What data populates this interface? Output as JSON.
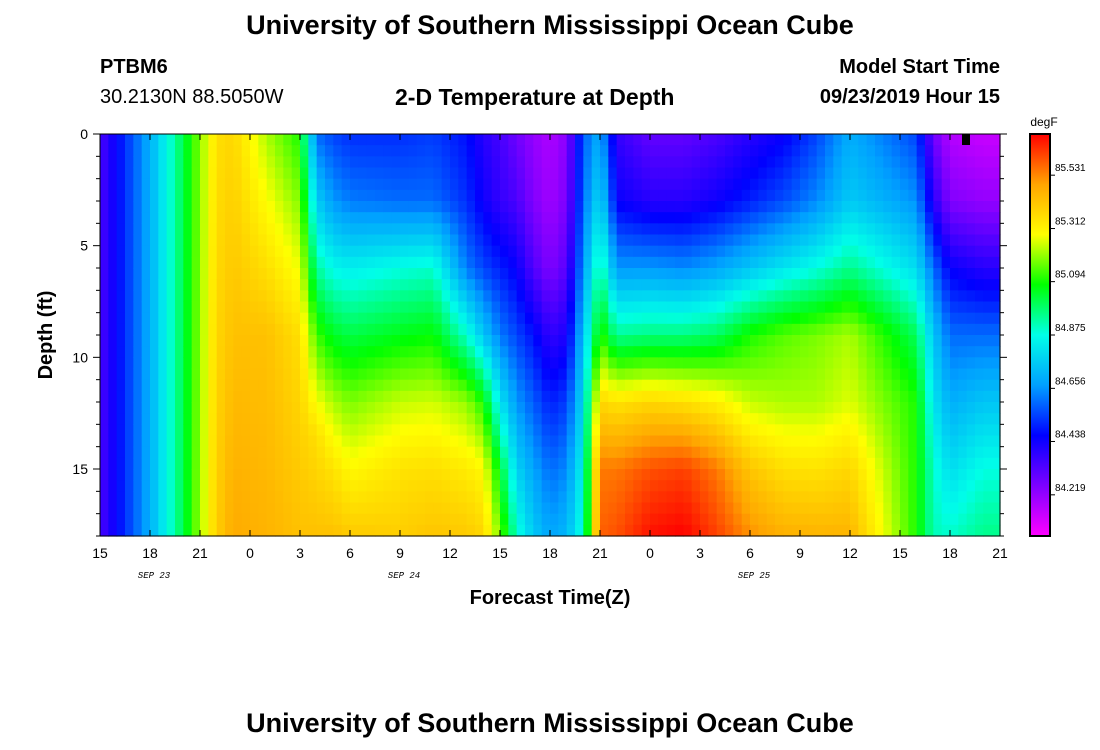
{
  "header": {
    "title": "University of Southern Mississippi Ocean Cube",
    "station_id": "PTBM6",
    "station_coords": "30.2130N 88.5050W",
    "plot_title": "2-D Temperature at Depth",
    "start_label": "Model Start Time",
    "start_value": "09/23/2019 Hour 15"
  },
  "footer": {
    "title": "University of Southern Mississippi Ocean Cube"
  },
  "chart_data": {
    "type": "heatmap",
    "title": "2-D Temperature at Depth",
    "xlabel": "Forecast Time(Z)",
    "ylabel": "Depth (ft)",
    "units": "degF",
    "x_hours_range": [
      0,
      54
    ],
    "x_tick_labels": [
      "15",
      "18",
      "21",
      "0",
      "3",
      "6",
      "9",
      "12",
      "15",
      "18",
      "21",
      "0",
      "3",
      "6",
      "9",
      "12",
      "15",
      "18",
      "21"
    ],
    "date_labels": [
      {
        "label": "SEP 23",
        "at_tick": 1
      },
      {
        "label": "SEP 24",
        "at_tick": 6
      },
      {
        "label": "SEP 25",
        "at_tick": 13
      }
    ],
    "y_range": [
      0,
      18
    ],
    "y_ticks": [
      0,
      5,
      10,
      15
    ],
    "color_range": [
      84.05,
      85.7
    ],
    "colorbar_ticks": [
      85.531,
      85.312,
      85.094,
      84.875,
      84.656,
      84.438,
      84.219
    ],
    "colormap": [
      "#ff00ff",
      "#7d00ff",
      "#0000ff",
      "#00a0ff",
      "#00ffe8",
      "#00ff00",
      "#ffff00",
      "#ffa500",
      "#ff0000"
    ],
    "columns": [
      {
        "hour": 0,
        "temps": [
          84.34,
          84.34
        ]
      },
      {
        "hour": 3,
        "temps": [
          84.7,
          84.7
        ]
      },
      {
        "hour": 5,
        "temps": [
          85.02,
          85.02
        ]
      },
      {
        "hour": 7,
        "temps": [
          85.36,
          85.4
        ]
      },
      {
        "hour": 8,
        "temps": [
          85.38,
          85.48
        ]
      },
      {
        "hour": 10,
        "temps": [
          85.22,
          85.43,
          85.46
        ]
      },
      {
        "hour": 12,
        "temps": [
          85.1,
          85.36,
          85.43
        ]
      },
      {
        "hour": 13,
        "temps": [
          84.6,
          84.85,
          85.13,
          85.36,
          85.43
        ]
      },
      {
        "hour": 14,
        "temps": [
          84.55,
          84.66,
          84.86,
          85.05,
          85.22,
          85.35,
          85.43
        ]
      },
      {
        "hour": 15,
        "temps": [
          84.52,
          84.62,
          84.84,
          85.02,
          85.18,
          85.3,
          85.41
        ]
      },
      {
        "hour": 18,
        "temps": [
          84.52,
          84.6,
          84.88,
          85.06,
          85.24,
          85.35,
          85.4
        ]
      },
      {
        "hour": 20,
        "temps": [
          84.54,
          84.6,
          84.9,
          85.08,
          85.25,
          85.36,
          85.42
        ]
      },
      {
        "hour": 22,
        "temps": [
          84.48,
          84.52,
          84.62,
          84.9,
          85.2,
          85.33,
          85.41
        ]
      },
      {
        "hour": 23,
        "temps": [
          84.4,
          84.44,
          84.55,
          84.75,
          85.1,
          85.3,
          85.38
        ]
      },
      {
        "hour": 24,
        "temps": [
          84.35,
          84.38,
          84.5,
          84.62,
          84.82,
          85.05,
          85.18
        ]
      },
      {
        "hour": 25,
        "temps": [
          84.28,
          84.34,
          84.45,
          84.55,
          84.66,
          84.78,
          84.9
        ]
      },
      {
        "hour": 26,
        "temps": [
          84.22,
          84.25,
          84.33,
          84.48,
          84.58,
          84.68,
          84.76
        ]
      },
      {
        "hour": 27,
        "temps": [
          84.18,
          84.2,
          84.25,
          84.38,
          84.5,
          84.6,
          84.68
        ]
      },
      {
        "hour": 28,
        "temps": [
          84.24,
          84.26,
          84.32,
          84.42,
          84.54,
          84.64,
          84.72
        ]
      },
      {
        "hour": 29,
        "temps": [
          84.58,
          84.6,
          84.66,
          84.74,
          84.8,
          84.86,
          84.9
        ]
      },
      {
        "hour": 30,
        "temps": [
          84.7,
          84.8,
          84.96,
          85.12,
          85.38,
          85.55,
          85.58
        ]
      },
      {
        "hour": 31,
        "temps": [
          84.38,
          84.45,
          84.66,
          84.95,
          85.35,
          85.55,
          85.6
        ]
      },
      {
        "hour": 33,
        "temps": [
          84.3,
          84.4,
          84.66,
          84.97,
          85.38,
          85.6,
          85.68
        ]
      },
      {
        "hour": 35,
        "temps": [
          84.3,
          84.4,
          84.64,
          84.97,
          85.36,
          85.62,
          85.7
        ]
      },
      {
        "hour": 37,
        "temps": [
          84.34,
          84.44,
          84.68,
          85.0,
          85.32,
          85.55,
          85.62
        ]
      },
      {
        "hour": 39,
        "temps": [
          84.4,
          84.5,
          84.75,
          85.1,
          85.24,
          85.42,
          85.52
        ]
      },
      {
        "hour": 41,
        "temps": [
          84.45,
          84.56,
          84.82,
          85.15,
          85.22,
          85.36,
          85.47
        ]
      },
      {
        "hour": 43,
        "temps": [
          84.55,
          84.64,
          84.88,
          85.18,
          85.22,
          85.35,
          85.46
        ]
      },
      {
        "hour": 45,
        "temps": [
          84.7,
          84.76,
          84.96,
          85.22,
          85.26,
          85.38,
          85.46
        ]
      },
      {
        "hour": 49,
        "temps": [
          84.55,
          84.65,
          84.8,
          85.0,
          85.1,
          85.1,
          85.1
        ]
      },
      {
        "hour": 50,
        "temps": [
          84.28,
          84.4,
          84.6,
          84.75,
          84.82,
          84.9,
          84.92
        ]
      },
      {
        "hour": 51,
        "temps": [
          84.17,
          84.25,
          84.45,
          84.6,
          84.7,
          84.8,
          84.9
        ]
      },
      {
        "hour": 53,
        "temps": [
          84.14,
          84.22,
          84.4,
          84.6,
          84.75,
          84.88,
          84.96
        ]
      },
      {
        "hour": 54,
        "temps": [
          84.14,
          84.22,
          84.4,
          84.6,
          84.75,
          84.88,
          84.96
        ]
      }
    ]
  }
}
